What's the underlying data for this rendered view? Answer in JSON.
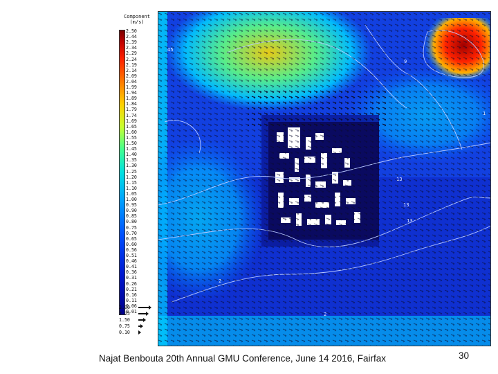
{
  "colorbar": {
    "title": "Component\n(m/s)",
    "ticks": [
      "2.50",
      "2.44",
      "2.39",
      "2.34",
      "2.29",
      "2.24",
      "2.19",
      "2.14",
      "2.09",
      "2.04",
      "1.99",
      "1.94",
      "1.89",
      "1.84",
      "1.79",
      "1.74",
      "1.69",
      "1.65",
      "1.60",
      "1.55",
      "1.50",
      "1.45",
      "1.40",
      "1.35",
      "1.30",
      "1.25",
      "1.20",
      "1.15",
      "1.10",
      "1.05",
      "1.00",
      "0.95",
      "0.90",
      "0.85",
      "0.80",
      "0.75",
      "0.70",
      "0.65",
      "0.60",
      "0.56",
      "0.51",
      "0.46",
      "0.41",
      "0.36",
      "0.31",
      "0.26",
      "0.21",
      "0.16",
      "0.11",
      "0.06",
      "0.01"
    ]
  },
  "vector_legend": [
    {
      "label": "3.00",
      "len": 3.0
    },
    {
      "label": "2.25",
      "len": 2.25
    },
    {
      "label": "1.50",
      "len": 1.5
    },
    {
      "label": "0.75",
      "len": 0.75
    },
    {
      "label": "0.10",
      "len": 0.1
    }
  ],
  "map": {
    "contour_labels": [
      "45",
      "13",
      "13",
      "13",
      "2",
      "2",
      "9",
      "1"
    ]
  },
  "footer": {
    "text": "Najat Benbouta 20th Annual GMU Conference, June 14 2016, Fairfax",
    "page_number": "30"
  }
}
